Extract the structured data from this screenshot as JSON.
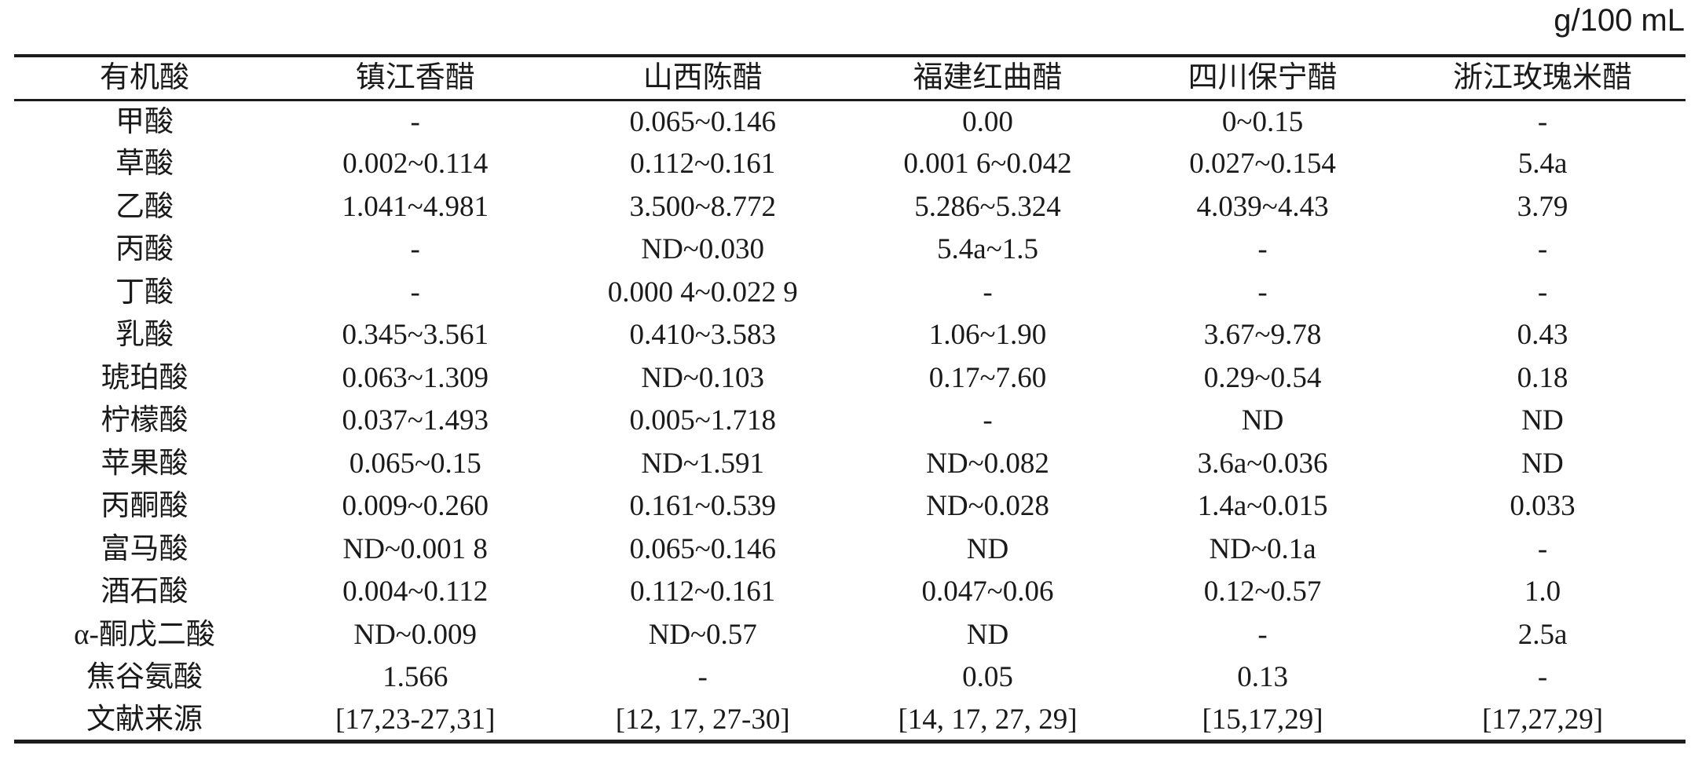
{
  "unit_label": "g/100 mL",
  "colors": {
    "text": "#1a1a1a",
    "rule": "#1c1c1c",
    "background": "#ffffff"
  },
  "table": {
    "columns": [
      "有机酸",
      "镇江香醋",
      "山西陈醋",
      "福建红曲醋",
      "四川保宁醋",
      "浙江玫瑰米醋"
    ],
    "rows": [
      {
        "acid": "甲酸",
        "values": [
          "-",
          "0.065~0.146",
          "0.00",
          "0~0.15",
          "-"
        ]
      },
      {
        "acid": "草酸",
        "values": [
          "0.002~0.114",
          "0.112~0.161",
          "0.001 6~0.042",
          "0.027~0.154",
          "5.4a"
        ]
      },
      {
        "acid": "乙酸",
        "values": [
          "1.041~4.981",
          "3.500~8.772",
          "5.286~5.324",
          "4.039~4.43",
          "3.79"
        ]
      },
      {
        "acid": "丙酸",
        "values": [
          "-",
          "ND~0.030",
          "5.4a~1.5",
          "-",
          "-"
        ]
      },
      {
        "acid": "丁酸",
        "values": [
          "-",
          "0.000 4~0.022 9",
          "-",
          "-",
          "-"
        ]
      },
      {
        "acid": "乳酸",
        "values": [
          "0.345~3.561",
          "0.410~3.583",
          "1.06~1.90",
          "3.67~9.78",
          "0.43"
        ]
      },
      {
        "acid": "琥珀酸",
        "values": [
          "0.063~1.309",
          "ND~0.103",
          "0.17~7.60",
          "0.29~0.54",
          "0.18"
        ]
      },
      {
        "acid": "柠檬酸",
        "values": [
          "0.037~1.493",
          "0.005~1.718",
          "-",
          "ND",
          "ND"
        ]
      },
      {
        "acid": "苹果酸",
        "values": [
          "0.065~0.15",
          "ND~1.591",
          "ND~0.082",
          "3.6a~0.036",
          "ND"
        ]
      },
      {
        "acid": "丙酮酸",
        "values": [
          "0.009~0.260",
          "0.161~0.539",
          "ND~0.028",
          "1.4a~0.015",
          "0.033"
        ]
      },
      {
        "acid": "富马酸",
        "values": [
          "ND~0.001 8",
          "0.065~0.146",
          "ND",
          "ND~0.1a",
          "-"
        ]
      },
      {
        "acid": "酒石酸",
        "values": [
          "0.004~0.112",
          "0.112~0.161",
          "0.047~0.06",
          "0.12~0.57",
          "1.0"
        ]
      },
      {
        "acid": "α-酮戊二酸",
        "values": [
          "ND~0.009",
          "ND~0.57",
          "ND",
          "-",
          "2.5a"
        ]
      },
      {
        "acid": "焦谷氨酸",
        "values": [
          "1.566",
          "-",
          "0.05",
          "0.13",
          "-"
        ]
      },
      {
        "acid": "文献来源",
        "values": [
          "[17,23-27,31]",
          "[12, 17, 27-30]",
          "[14, 17, 27, 29]",
          "[15,17,29]",
          "[17,27,29]"
        ]
      }
    ]
  }
}
